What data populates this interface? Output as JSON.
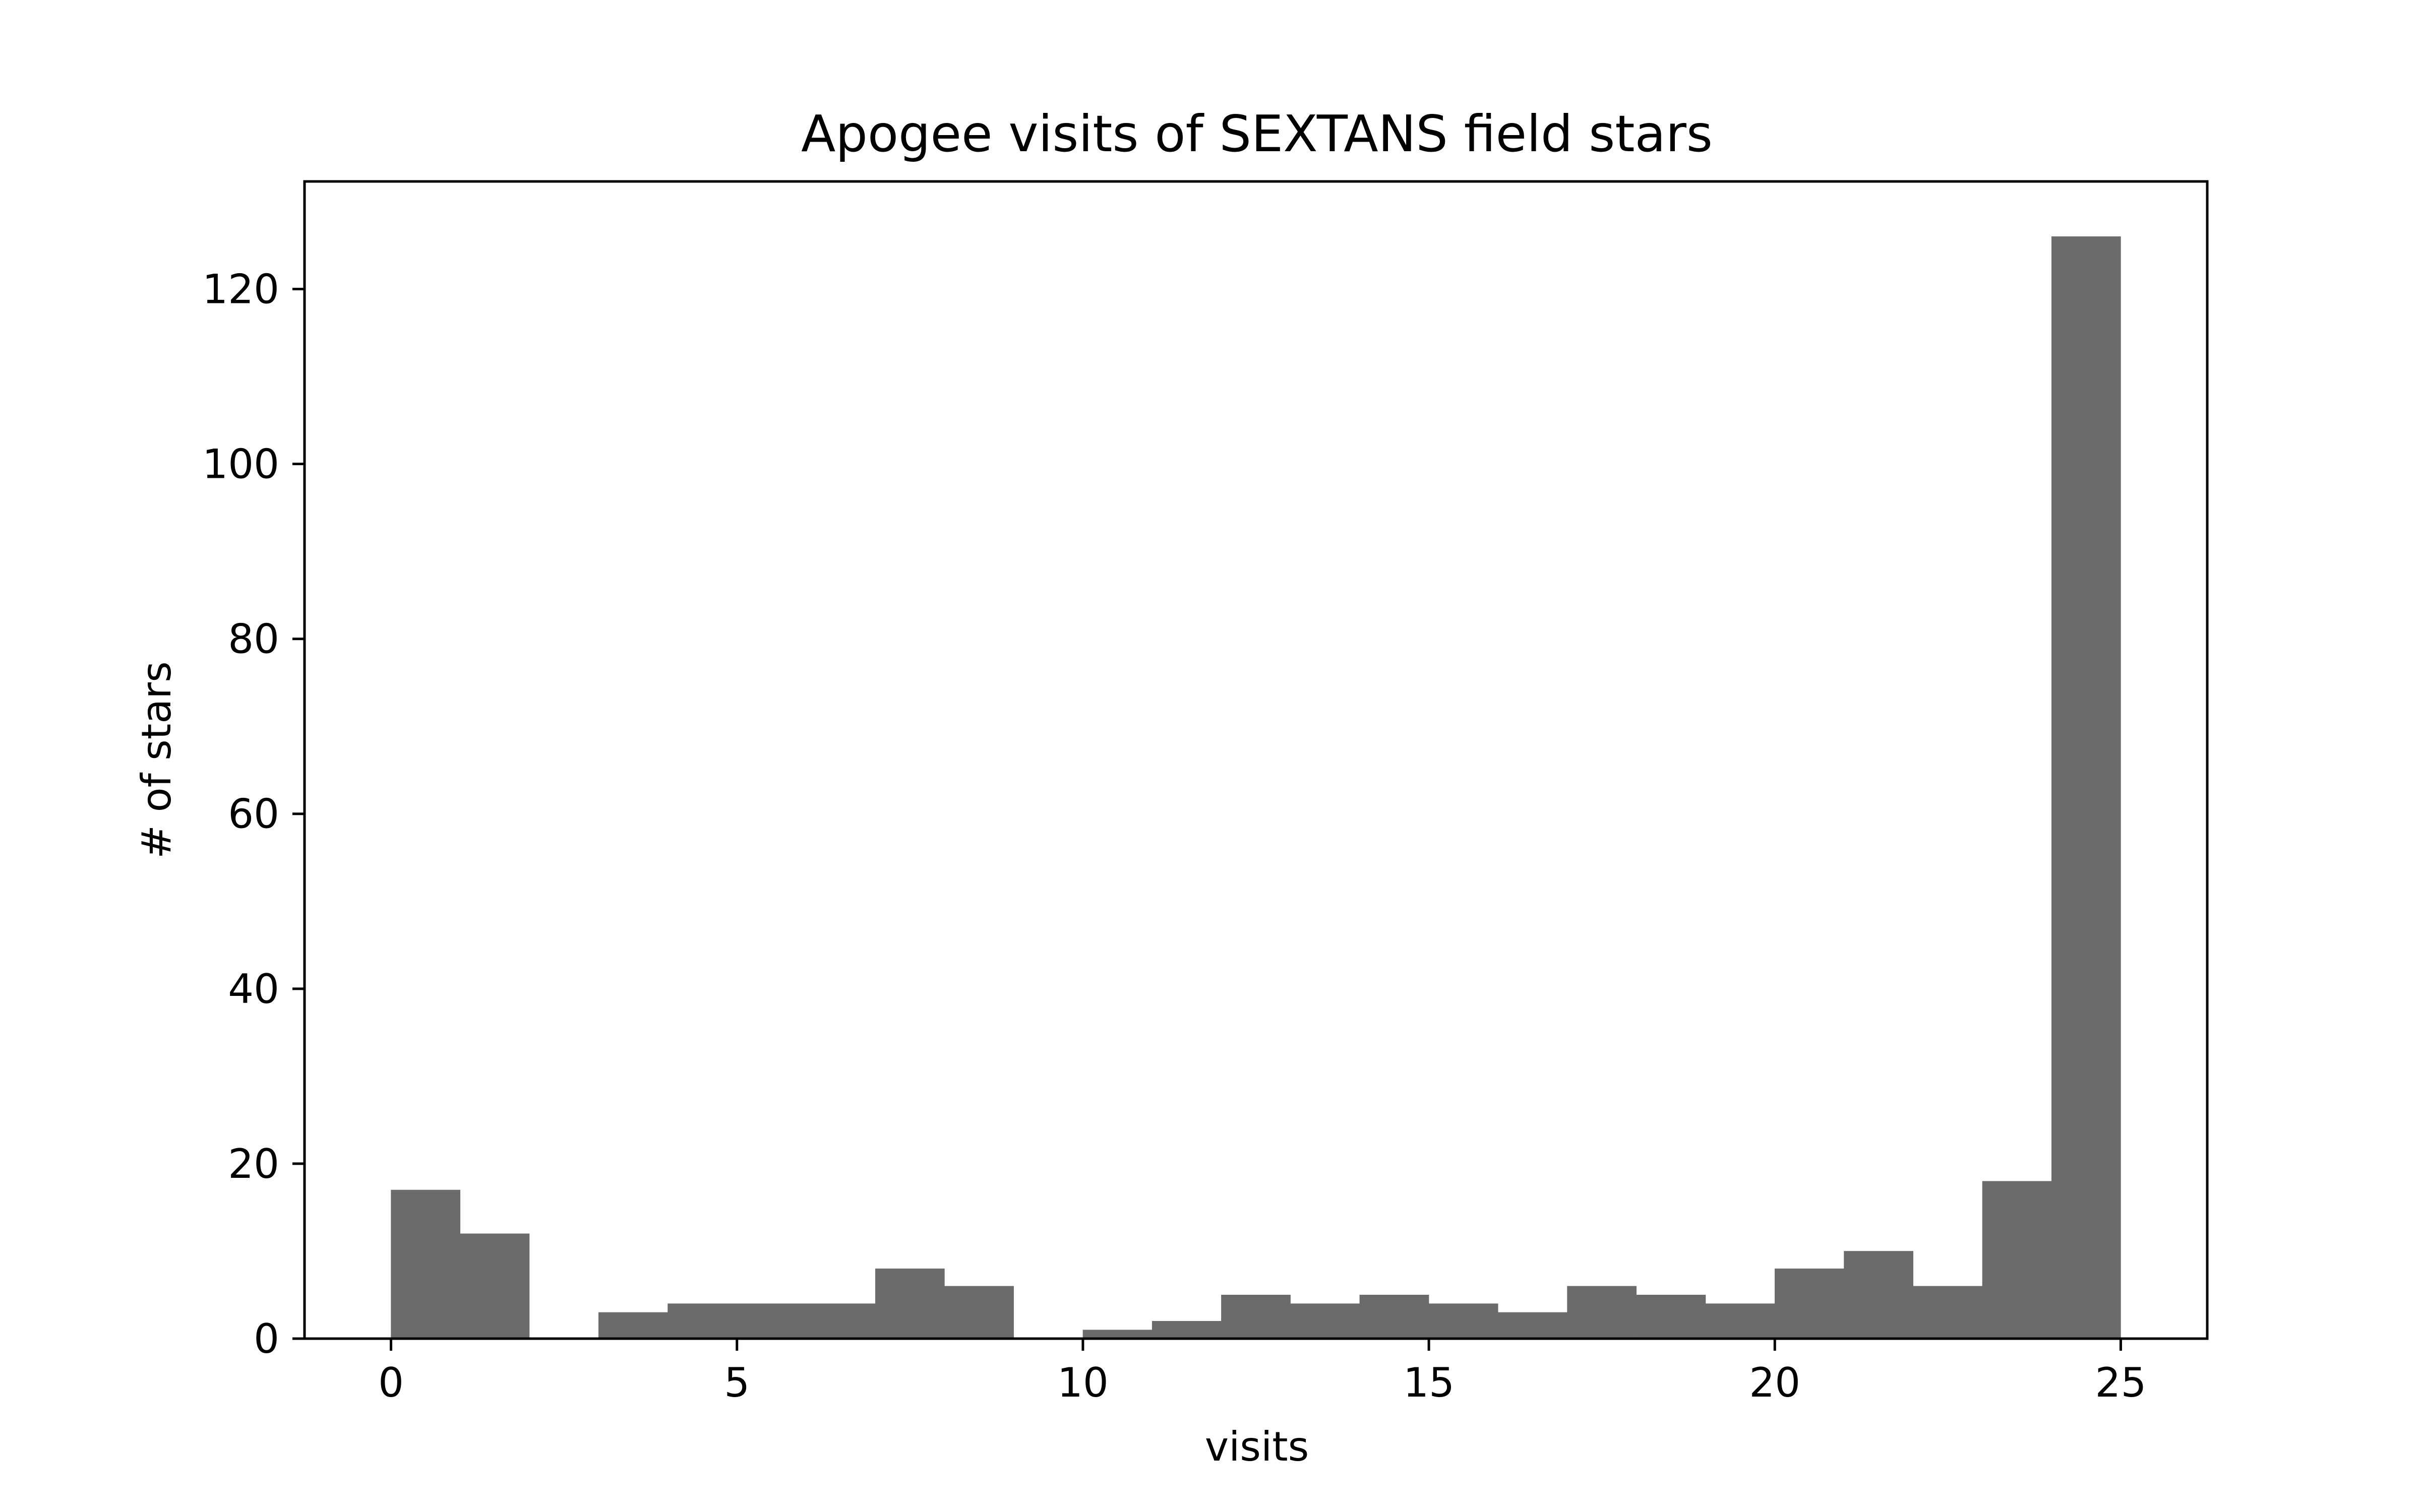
{
  "chart_data": {
    "type": "bar",
    "title": "Apogee visits of SEXTANS field stars",
    "xlabel": "visits",
    "ylabel": "# of stars",
    "bin_edges": [
      0,
      1,
      2,
      3,
      4,
      5,
      6,
      7,
      8,
      9,
      10,
      11,
      12,
      13,
      14,
      15,
      16,
      17,
      18,
      19,
      20,
      21,
      22,
      23,
      24,
      25
    ],
    "values": [
      17,
      12,
      0,
      3,
      4,
      4,
      4,
      8,
      6,
      0,
      1,
      2,
      5,
      4,
      5,
      4,
      3,
      6,
      5,
      4,
      8,
      10,
      6,
      18,
      126
    ],
    "xlim": [
      -1.25,
      26.25
    ],
    "ylim": [
      0,
      132.3
    ],
    "xticks": [
      0,
      5,
      10,
      15,
      20,
      25
    ],
    "yticks": [
      0,
      20,
      40,
      60,
      80,
      100,
      120
    ],
    "bar_color": "#6b6b6b",
    "grid": false
  }
}
